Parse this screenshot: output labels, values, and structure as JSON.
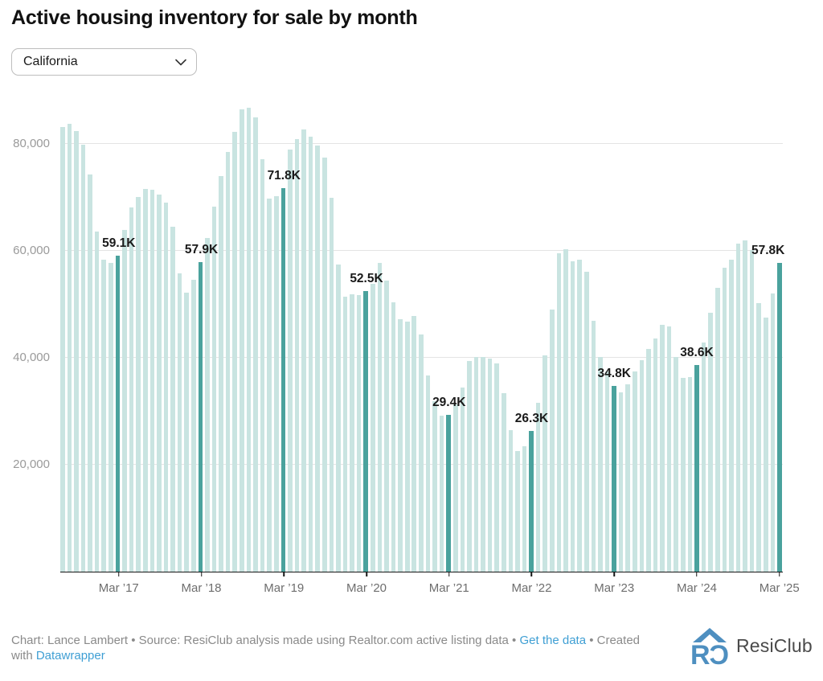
{
  "header": {
    "title": "Active housing inventory for sale by month"
  },
  "controls": {
    "region_select": {
      "value": "California",
      "icon": "chevron-down-icon"
    }
  },
  "chart_data": {
    "type": "bar",
    "title": "Active housing inventory for sale by month",
    "region": "California",
    "x_start_month": "2016-07",
    "x_end_month": "2025-03",
    "x_frequency": "monthly",
    "ylabel": "",
    "xlabel": "",
    "ylim": [
      0,
      87200
    ],
    "grid": "horizontal",
    "values_unit": "thousands_of_listings",
    "values_thousands": [
      83.2,
      83.8,
      82.4,
      79.8,
      74.3,
      63.6,
      58.3,
      57.7,
      59.1,
      63.9,
      68.2,
      70.1,
      71.6,
      71.4,
      70.6,
      69.0,
      64.5,
      55.8,
      52.2,
      54.6,
      57.9,
      62.4,
      68.3,
      74.0,
      78.5,
      82.3,
      86.5,
      86.8,
      85.0,
      77.2,
      69.8,
      70.3,
      71.8,
      79.0,
      80.9,
      82.7,
      81.4,
      79.7,
      77.4,
      70.0,
      57.4,
      51.5,
      51.9,
      51.8,
      52.5,
      53.9,
      57.7,
      54.4,
      50.4,
      47.2,
      46.8,
      47.8,
      44.3,
      36.7,
      31.9,
      29.2,
      29.4,
      31.3,
      34.5,
      39.4,
      40.1,
      40.2,
      39.9,
      38.9,
      33.4,
      26.4,
      22.6,
      23.5,
      26.3,
      31.6,
      40.4,
      49.0,
      59.5,
      60.3,
      58.1,
      58.3,
      56.1,
      46.9,
      40.2,
      37.4,
      34.8,
      33.5,
      35.1,
      37.4,
      39.6,
      41.6,
      43.6,
      46.1,
      45.9,
      40.2,
      36.3,
      36.4,
      38.6,
      42.9,
      48.4,
      53.1,
      56.8,
      58.4,
      61.4,
      61.9,
      60.1,
      50.2,
      47.5,
      52.0,
      57.8
    ],
    "highlighted_bars": [
      {
        "index": 8,
        "month": "Mar 2017",
        "label": "59.1K"
      },
      {
        "index": 20,
        "month": "Mar 2018",
        "label": "57.9K"
      },
      {
        "index": 32,
        "month": "Mar 2019",
        "label": "71.8K"
      },
      {
        "index": 44,
        "month": "Mar 2020",
        "label": "52.5K"
      },
      {
        "index": 56,
        "month": "Mar 2021",
        "label": "29.4K"
      },
      {
        "index": 68,
        "month": "Mar 2022",
        "label": "26.3K"
      },
      {
        "index": 80,
        "month": "Mar 2023",
        "label": "34.8K"
      },
      {
        "index": 92,
        "month": "Mar 2024",
        "label": "38.6K"
      },
      {
        "index": 104,
        "month": "Mar 2025",
        "label": "57.8K"
      }
    ],
    "x_tick_labels": [
      "Mar ’17",
      "Mar ’18",
      "Mar ’19",
      "Mar ’20",
      "Mar ’21",
      "Mar ’22",
      "Mar ’23",
      "Mar ’24",
      "Mar ’25"
    ],
    "y_ticks": [
      {
        "value": 20000,
        "label": "20,000"
      },
      {
        "value": 40000,
        "label": "40,000"
      },
      {
        "value": 60000,
        "label": "60,000"
      },
      {
        "value": 80000,
        "label": "80,000"
      }
    ],
    "colors": {
      "bar": "#c9e4e1",
      "bar_highlight": "#4aa29d",
      "gridline": "#e4e4e4",
      "axis_line": "#151515",
      "value_label": "#1a1a1a",
      "tick_label": "#6e6e6e",
      "y_tick_label": "#9a9a9a"
    },
    "legend": "none"
  },
  "footer": {
    "credit_prefix": "Chart: Lance Lambert • Source: ResiClub analysis made using Realtor.com active listing data • ",
    "link_get_data": "Get the data",
    "credit_mid": " • Created",
    "line2_prefix": "with ",
    "link_datawrapper": "Datawrapper",
    "link_color": "#3f9fd4"
  },
  "logo": {
    "text": "ResiClub",
    "icon": "resiclub-house-icon",
    "icon_color": "#4e8fc0"
  }
}
